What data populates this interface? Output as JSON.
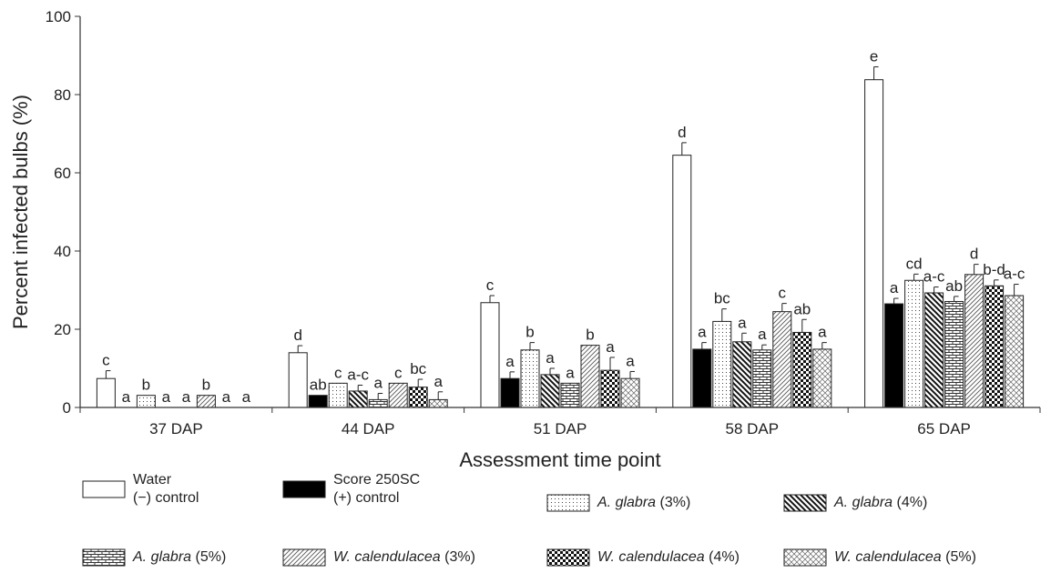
{
  "chart_data": {
    "type": "bar",
    "xlabel": "Assessment time point",
    "ylabel": "Percent infected bulbs (%)",
    "ylim": [
      0,
      100
    ],
    "yticks": [
      0,
      20,
      40,
      60,
      80,
      100
    ],
    "categories": [
      "37 DAP",
      "44 DAP",
      "51 DAP",
      "58 DAP",
      "65 DAP"
    ],
    "series": [
      {
        "name": "Water (−) control",
        "pattern": "white",
        "values": [
          7.4,
          14.0,
          26.8,
          64.5,
          83.8
        ],
        "errors": [
          2.0,
          1.8,
          1.8,
          3.2,
          3.3
        ],
        "letters": [
          "c",
          "d",
          "c",
          "d",
          "e"
        ]
      },
      {
        "name": "Score 250SC (+) control",
        "pattern": "black",
        "values": [
          0,
          3.1,
          7.4,
          14.9,
          26.5
        ],
        "errors": [
          0,
          0,
          1.7,
          1.7,
          1.4
        ],
        "letters": [
          "a",
          "ab",
          "a",
          "a",
          "a"
        ]
      },
      {
        "name": "A. glabra (3%)",
        "pattern": "dots",
        "values": [
          3.1,
          6.2,
          14.7,
          22.0,
          32.5
        ],
        "errors": [
          0,
          0,
          1.9,
          3.2,
          1.6
        ],
        "letters": [
          "b",
          "c",
          "b",
          "bc",
          "cd"
        ]
      },
      {
        "name": "A. glabra (4%)",
        "pattern": "backslash",
        "values": [
          0,
          4.2,
          8.4,
          16.8,
          29.3
        ],
        "errors": [
          0,
          1.5,
          1.6,
          2.2,
          1.5
        ],
        "letters": [
          "a",
          "a-c",
          "a",
          "a",
          "a-c"
        ]
      },
      {
        "name": "A. glabra (5%)",
        "pattern": "brick",
        "values": [
          0,
          2.0,
          6.2,
          14.7,
          27.1
        ],
        "errors": [
          0,
          1.6,
          0,
          1.3,
          1.3
        ],
        "letters": [
          "a",
          "a",
          "a",
          "a",
          "ab"
        ]
      },
      {
        "name": "W. calendulacea (3%)",
        "pattern": "slash",
        "values": [
          3.1,
          6.2,
          15.9,
          24.5,
          34.0
        ],
        "errors": [
          0,
          0,
          0,
          2.1,
          2.6
        ],
        "letters": [
          "b",
          "c",
          "b",
          "c",
          "d"
        ]
      },
      {
        "name": "W. calendulacea (4%)",
        "pattern": "checker",
        "values": [
          0,
          5.2,
          9.5,
          19.2,
          31.1
        ],
        "errors": [
          0,
          2.0,
          3.3,
          3.3,
          1.5
        ],
        "letters": [
          "a",
          "bc",
          "a",
          "ab",
          "b-d"
        ]
      },
      {
        "name": "W. calendulacea (5%)",
        "pattern": "diamond",
        "values": [
          0,
          2.0,
          7.4,
          14.9,
          28.6
        ],
        "errors": [
          0,
          2.0,
          1.8,
          1.7,
          2.9
        ],
        "letters": [
          "a",
          "a",
          "a",
          "a",
          "a-c"
        ]
      }
    ]
  },
  "legend": [
    {
      "pattern": "white",
      "line1_plain": "Water",
      "line2": "(−) control"
    },
    {
      "pattern": "black",
      "line1_plain": "Score 250SC",
      "line2": "(+) control"
    },
    {
      "pattern": "dots",
      "sci": "A. glabra",
      "suffix": " (3%)"
    },
    {
      "pattern": "backslash",
      "sci": "A. glabra",
      "suffix": " (4%)"
    },
    {
      "pattern": "brick",
      "sci": "A. glabra",
      "suffix": " (5%)"
    },
    {
      "pattern": "slash",
      "sci": "W. calendulacea",
      "suffix": " (3%)"
    },
    {
      "pattern": "checker",
      "sci": "W. calendulacea",
      "suffix": " (4%)"
    },
    {
      "pattern": "diamond",
      "sci": "W. calendulacea",
      "suffix": " (5%)"
    }
  ]
}
